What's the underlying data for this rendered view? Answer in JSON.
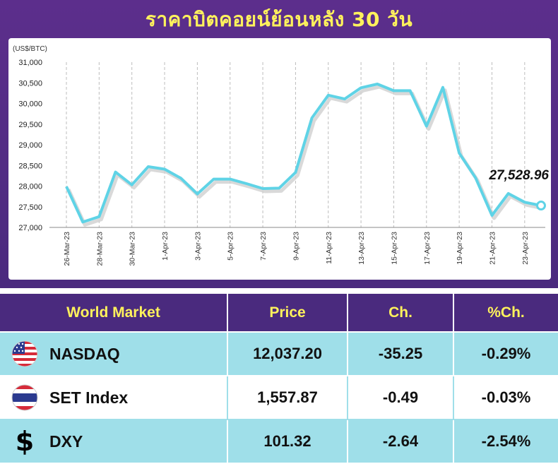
{
  "title": "ราคาบิตคอยน์ย้อนหลัง 30 วัน",
  "chart_data": {
    "type": "line",
    "unit_label": "(US$/BTC)",
    "ylim": [
      27000,
      31000
    ],
    "yticks": [
      "31,000",
      "30,500",
      "30,000",
      "29,500",
      "29,000",
      "28,500",
      "28,000",
      "27,500",
      "27,000"
    ],
    "ytick_values": [
      31000,
      30500,
      30000,
      29500,
      29000,
      28500,
      28000,
      27500,
      27000
    ],
    "x_ticks": [
      "26-Mar-23",
      "28-Mar-23",
      "30-Mar-23",
      "1-Apr-23",
      "3-Apr-23",
      "5-Apr-23",
      "7-Apr-23",
      "9-Apr-23",
      "11-Apr-23",
      "13-Apr-23",
      "15-Apr-23",
      "17-Apr-23",
      "19-Apr-23",
      "21-Apr-23",
      "23-Apr-23"
    ],
    "x": [
      "26-Mar-23",
      "27-Mar-23",
      "28-Mar-23",
      "29-Mar-23",
      "30-Mar-23",
      "31-Mar-23",
      "1-Apr-23",
      "2-Apr-23",
      "3-Apr-23",
      "4-Apr-23",
      "5-Apr-23",
      "6-Apr-23",
      "7-Apr-23",
      "8-Apr-23",
      "9-Apr-23",
      "10-Apr-23",
      "11-Apr-23",
      "12-Apr-23",
      "13-Apr-23",
      "14-Apr-23",
      "15-Apr-23",
      "16-Apr-23",
      "17-Apr-23",
      "18-Apr-23",
      "19-Apr-23",
      "20-Apr-23",
      "21-Apr-23",
      "22-Apr-23",
      "23-Apr-23",
      "24-Apr-23"
    ],
    "values": [
      27990,
      27130,
      27260,
      28340,
      28030,
      28470,
      28410,
      28190,
      27810,
      28170,
      28170,
      28060,
      27940,
      27950,
      28330,
      29650,
      30200,
      30110,
      30380,
      30470,
      30310,
      30310,
      29450,
      30390,
      28800,
      28200,
      27290,
      27820,
      27610,
      27528.96
    ],
    "last_value_label": "27,528.96",
    "line_color": "#5fd3e6",
    "grid": "vertical dashed"
  },
  "table": {
    "headers": [
      "World Market",
      "Price",
      "Ch.",
      "%Ch."
    ],
    "rows": [
      {
        "icon": "us-flag-icon",
        "name": "NASDAQ",
        "price": "12,037.20",
        "ch": "-35.25",
        "pch": "-0.29%"
      },
      {
        "icon": "thai-flag-icon",
        "name": "SET Index",
        "price": "1,557.87",
        "ch": "-0.49",
        "pch": "-0.03%"
      },
      {
        "icon": "dollar-sign-icon",
        "name": "DXY",
        "price": "101.32",
        "ch": "-2.64",
        "pch": "-2.54%"
      }
    ]
  },
  "colors": {
    "header_bg": "#4a2a7e",
    "title_yellow": "#fff25c",
    "row_alt": "#9fdfe9"
  }
}
